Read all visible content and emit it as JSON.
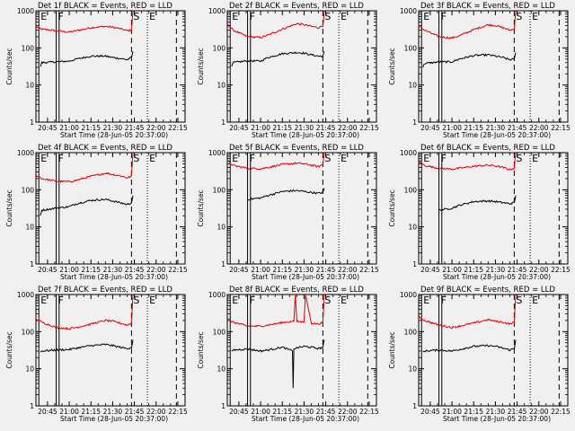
{
  "figure": {
    "xlabel": "Start Time (28-Jun-05 20:37:00)",
    "ylabel": "Counts/sec",
    "marker_labels": [
      "E",
      "F",
      "S",
      "E"
    ],
    "x_ticks": [
      {
        "t": 8,
        "label": "20:45"
      },
      {
        "t": 23,
        "label": "21:00"
      },
      {
        "t": 38,
        "label": "21:15"
      },
      {
        "t": 53,
        "label": "21:30"
      },
      {
        "t": 68,
        "label": "21:45"
      },
      {
        "t": 83,
        "label": "22:00"
      },
      {
        "t": 98,
        "label": "22:15"
      }
    ],
    "y_ticks": [
      {
        "v": 1,
        "label": "1"
      },
      {
        "v": 10,
        "label": "10"
      },
      {
        "v": 100,
        "label": "100"
      },
      {
        "v": 1000,
        "label": "1000"
      }
    ],
    "markers": [
      {
        "label": "E",
        "t": 2,
        "style": "solid"
      },
      {
        "label": "F",
        "t": 14,
        "style": "solid"
      },
      {
        "label": "",
        "t": 16,
        "style": "solid"
      },
      {
        "label": "S",
        "t": 66,
        "style": "dashed"
      },
      {
        "label": "E",
        "t": 77,
        "style": "dotted"
      },
      {
        "label": "",
        "t": 97,
        "style": "dashed"
      }
    ]
  },
  "chart_data": [
    {
      "type": "line",
      "title": "Det 1f BLACK = Events, RED = LLD",
      "xlabel": "Start Time (28-Jun-05 20:37:00)",
      "ylabel": "Counts/sec",
      "xlim": [
        0,
        103
      ],
      "ylim": [
        1,
        1000
      ],
      "series": [
        {
          "name": "LLD",
          "color": "#dd0000",
          "x": [
            0,
            4,
            14,
            23,
            28,
            38,
            48,
            53,
            58,
            63,
            66,
            67
          ],
          "values": [
            370,
            320,
            290,
            265,
            290,
            350,
            380,
            360,
            330,
            290,
            300,
            1000
          ]
        },
        {
          "name": "Events",
          "color": "#000000",
          "x": [
            3,
            4,
            14,
            23,
            28,
            38,
            48,
            53,
            58,
            63,
            66,
            67
          ],
          "values": [
            30,
            40,
            42,
            44,
            50,
            60,
            60,
            55,
            52,
            48,
            55,
            80
          ]
        }
      ]
    },
    {
      "type": "line",
      "title": "Det 2f BLACK = Events, RED = LLD",
      "xlabel": "Start Time (28-Jun-05 20:37:00)",
      "ylabel": "Counts/sec",
      "xlim": [
        0,
        103
      ],
      "ylim": [
        1,
        1000
      ],
      "series": [
        {
          "name": "LLD",
          "color": "#dd0000",
          "x": [
            0,
            4,
            14,
            23,
            28,
            38,
            48,
            53,
            58,
            63,
            66,
            67
          ],
          "values": [
            450,
            300,
            200,
            190,
            220,
            320,
            450,
            420,
            380,
            350,
            400,
            1000
          ]
        },
        {
          "name": "Events",
          "color": "#000000",
          "x": [
            3,
            4,
            14,
            23,
            28,
            38,
            48,
            53,
            58,
            63,
            66,
            67
          ],
          "values": [
            30,
            40,
            45,
            44,
            55,
            70,
            75,
            72,
            65,
            60,
            60,
            80
          ]
        }
      ]
    },
    {
      "type": "line",
      "title": "Det 3f BLACK = Events, RED = LLD",
      "xlabel": "Start Time (28-Jun-05 20:37:00)",
      "ylabel": "Counts/sec",
      "xlim": [
        0,
        103
      ],
      "ylim": [
        1,
        1000
      ],
      "series": [
        {
          "name": "LLD",
          "color": "#dd0000",
          "x": [
            0,
            4,
            14,
            23,
            28,
            38,
            48,
            53,
            58,
            63,
            66,
            67
          ],
          "values": [
            400,
            300,
            200,
            185,
            210,
            310,
            420,
            400,
            350,
            300,
            320,
            1000
          ]
        },
        {
          "name": "Events",
          "color": "#000000",
          "x": [
            3,
            4,
            14,
            23,
            28,
            38,
            48,
            53,
            58,
            63,
            66,
            67
          ],
          "values": [
            30,
            38,
            42,
            42,
            50,
            62,
            65,
            60,
            55,
            48,
            50,
            75
          ]
        }
      ]
    },
    {
      "type": "line",
      "title": "Det 4f BLACK = Events, RED = LLD",
      "xlabel": "Start Time (28-Jun-05 20:37:00)",
      "ylabel": "Counts/sec",
      "xlim": [
        0,
        103
      ],
      "ylim": [
        1,
        1000
      ],
      "series": [
        {
          "name": "LLD",
          "color": "#dd0000",
          "x": [
            0,
            4,
            14,
            23,
            28,
            38,
            48,
            53,
            58,
            63,
            66,
            67
          ],
          "values": [
            250,
            200,
            170,
            165,
            180,
            230,
            280,
            260,
            240,
            210,
            230,
            1000
          ]
        },
        {
          "name": "Events",
          "color": "#000000",
          "x": [
            3,
            4,
            14,
            23,
            28,
            38,
            48,
            53,
            58,
            63,
            66,
            67
          ],
          "values": [
            20,
            28,
            32,
            35,
            42,
            52,
            55,
            50,
            45,
            40,
            45,
            70
          ]
        }
      ]
    },
    {
      "type": "line",
      "title": "Det 5f BLACK = Events, RED = LLD",
      "xlabel": "Start Time (28-Jun-05 20:37:00)",
      "ylabel": "Counts/sec",
      "xlim": [
        0,
        103
      ],
      "ylim": [
        1,
        1000
      ],
      "series": [
        {
          "name": "LLD",
          "color": "#dd0000",
          "x": [
            0,
            4,
            14,
            23,
            28,
            38,
            48,
            53,
            58,
            63,
            66,
            67
          ],
          "values": [
            600,
            450,
            380,
            370,
            400,
            480,
            520,
            500,
            460,
            420,
            480,
            1000
          ]
        },
        {
          "name": "Events",
          "color": "#000000",
          "x": [
            14,
            23,
            28,
            38,
            48,
            53,
            58,
            63,
            66,
            67
          ],
          "values": [
            55,
            60,
            70,
            90,
            95,
            90,
            85,
            80,
            85,
            110
          ]
        }
      ]
    },
    {
      "type": "line",
      "title": "Det 6f BLACK = Events, RED = LLD",
      "xlabel": "Start Time (28-Jun-05 20:37:00)",
      "ylabel": "Counts/sec",
      "xlim": [
        0,
        103
      ],
      "ylim": [
        1,
        1000
      ],
      "series": [
        {
          "name": "LLD",
          "color": "#dd0000",
          "x": [
            0,
            4,
            14,
            23,
            28,
            38,
            48,
            53,
            58,
            63,
            66,
            67
          ],
          "values": [
            600,
            450,
            380,
            360,
            380,
            430,
            460,
            440,
            400,
            350,
            380,
            1000
          ]
        },
        {
          "name": "Events",
          "color": "#000000",
          "x": [
            14,
            23,
            28,
            38,
            48,
            53,
            58,
            63,
            66,
            67
          ],
          "values": [
            28,
            32,
            38,
            48,
            50,
            48,
            45,
            42,
            45,
            70
          ]
        }
      ]
    },
    {
      "type": "line",
      "title": "Det 7f BLACK = Events, RED = LLD",
      "xlabel": "Start Time (28-Jun-05 20:37:00)",
      "ylabel": "Counts/sec",
      "xlim": [
        0,
        103
      ],
      "ylim": [
        1,
        1000
      ],
      "series": [
        {
          "name": "LLD",
          "color": "#dd0000",
          "x": [
            0,
            4,
            14,
            23,
            28,
            38,
            48,
            53,
            58,
            63,
            66,
            67
          ],
          "values": [
            220,
            180,
            130,
            120,
            130,
            160,
            200,
            190,
            170,
            150,
            170,
            1000
          ]
        },
        {
          "name": "Events",
          "color": "#000000",
          "x": [
            3,
            4,
            14,
            23,
            28,
            38,
            48,
            53,
            58,
            63,
            66,
            67
          ],
          "values": [
            28,
            30,
            32,
            33,
            36,
            42,
            45,
            42,
            38,
            35,
            38,
            60
          ]
        }
      ]
    },
    {
      "type": "line",
      "title": "Det 8f BLACK = Events, RED = LLD",
      "xlabel": "Start Time (28-Jun-05 20:37:00)",
      "ylabel": "Counts/sec",
      "xlim": [
        0,
        103
      ],
      "ylim": [
        1,
        1000
      ],
      "series": [
        {
          "name": "LLD",
          "color": "#dd0000",
          "x": [
            0,
            4,
            14,
            23,
            28,
            38,
            46,
            47,
            48,
            53,
            54,
            58,
            63,
            66,
            67
          ],
          "values": [
            220,
            180,
            140,
            140,
            150,
            175,
            190,
            1000,
            190,
            180,
            1000,
            170,
            160,
            180,
            1000
          ]
        },
        {
          "name": "Events",
          "color": "#000000",
          "x": [
            3,
            4,
            14,
            23,
            28,
            38,
            45,
            45.5,
            46,
            53,
            58,
            63,
            66,
            67
          ],
          "values": [
            28,
            32,
            34,
            30,
            32,
            38,
            30,
            3,
            35,
            40,
            38,
            35,
            38,
            60
          ]
        }
      ]
    },
    {
      "type": "line",
      "title": "Det 9f BLACK = Events, RED = LLD",
      "xlabel": "Start Time (28-Jun-05 20:37:00)",
      "ylabel": "Counts/sec",
      "xlim": [
        0,
        103
      ],
      "ylim": [
        1,
        1000
      ],
      "series": [
        {
          "name": "LLD",
          "color": "#dd0000",
          "x": [
            0,
            4,
            14,
            23,
            28,
            38,
            48,
            53,
            58,
            63,
            66,
            67
          ],
          "values": [
            260,
            200,
            150,
            130,
            140,
            170,
            210,
            190,
            180,
            160,
            180,
            1000
          ]
        },
        {
          "name": "Events",
          "color": "#000000",
          "x": [
            3,
            4,
            14,
            23,
            28,
            38,
            48,
            53,
            58,
            63,
            66,
            67
          ],
          "values": [
            28,
            30,
            32,
            30,
            33,
            40,
            42,
            40,
            36,
            32,
            35,
            60
          ]
        }
      ]
    }
  ]
}
